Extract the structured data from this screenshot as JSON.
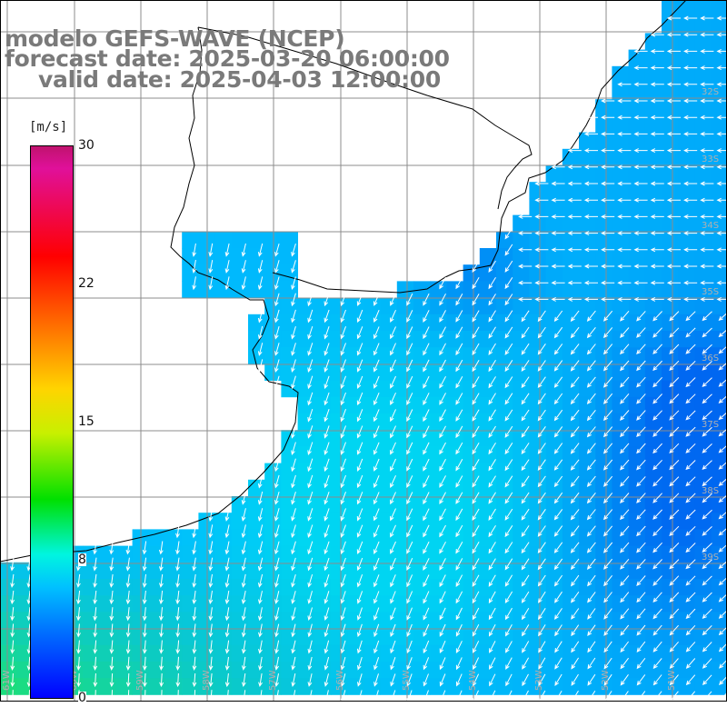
{
  "titles": {
    "line1": "modelo GEFS-WAVE (NCEP)",
    "line2": "forecast date: 2025-03-20 06:00:00",
    "line3": "valid date: 2025-04-03 12:00:00"
  },
  "colorbar": {
    "unit": "[m/s]",
    "ticks": [
      "30",
      "22",
      "15",
      "8",
      "0"
    ],
    "range": [
      0,
      30
    ],
    "colors": [
      "#0000ff",
      "#0070ff",
      "#00c0ff",
      "#00f5e0",
      "#00e000",
      "#c8f000",
      "#ffd400",
      "#ff6a00",
      "#ff0000",
      "#e0109a",
      "#c0136e"
    ]
  },
  "map": {
    "land_color": "#ffffff",
    "coast_color": "#000000",
    "grid_color": "#8c8c8c",
    "arrow_color": "#ffffff",
    "label_color": "#b0b0b0",
    "lat_labels": [
      "32S",
      "33S",
      "34S",
      "35S",
      "36S",
      "37S",
      "38S",
      "39S"
    ],
    "lon_labels": [
      "61W",
      "60W",
      "59W",
      "58W",
      "57W",
      "56W",
      "55W",
      "54W",
      "53W",
      "52W",
      "51W"
    ]
  }
}
